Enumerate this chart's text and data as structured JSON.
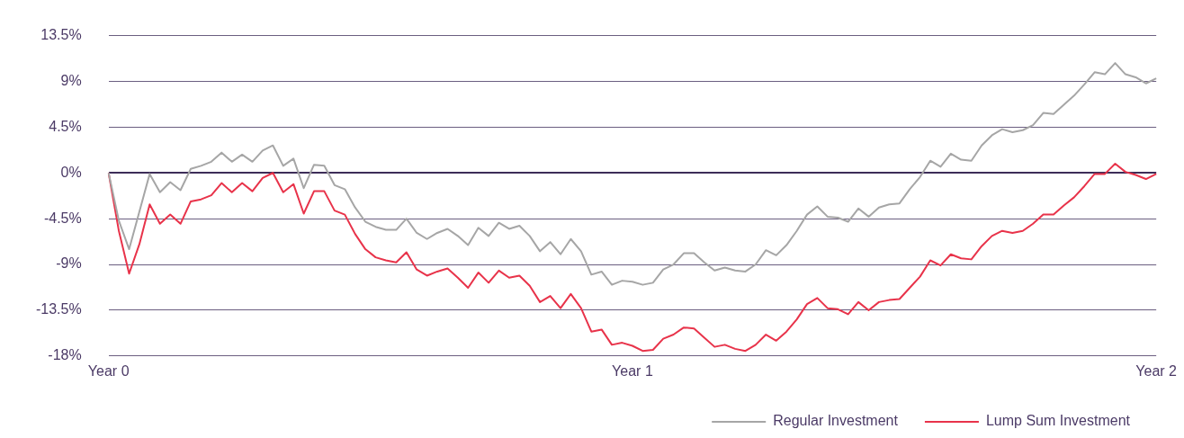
{
  "chart_data": {
    "type": "line",
    "categories": [
      "Year 0",
      null,
      null,
      null,
      null,
      null,
      null,
      null,
      null,
      null,
      null,
      null,
      null,
      null,
      null,
      null,
      null,
      null,
      null,
      null,
      null,
      null,
      null,
      null,
      null,
      null,
      null,
      null,
      null,
      null,
      null,
      null,
      null,
      null,
      null,
      null,
      null,
      null,
      null,
      null,
      null,
      null,
      null,
      null,
      null,
      null,
      null,
      null,
      null,
      null,
      null,
      "Year 1",
      null,
      null,
      null,
      null,
      null,
      null,
      null,
      null,
      null,
      null,
      null,
      null,
      null,
      null,
      null,
      null,
      null,
      null,
      null,
      null,
      null,
      null,
      null,
      null,
      null,
      null,
      null,
      null,
      null,
      null,
      null,
      null,
      null,
      null,
      null,
      null,
      null,
      null,
      null,
      null,
      null,
      null,
      null,
      null,
      null,
      null,
      null,
      null,
      null,
      null,
      "Year 2"
    ],
    "series": [
      {
        "name": "Regular Investment",
        "color": "#a6a6a6",
        "values": [
          0,
          -4.7,
          -7.5,
          -3.8,
          -0.1,
          -1.9,
          -0.9,
          -1.7,
          0.4,
          0.7,
          1.1,
          2.0,
          1.1,
          1.8,
          1.1,
          2.2,
          2.7,
          0.7,
          1.4,
          -1.5,
          0.8,
          0.7,
          -1.2,
          -1.6,
          -3.4,
          -4.8,
          -5.3,
          -5.6,
          -5.6,
          -4.5,
          -5.9,
          -6.5,
          -5.9,
          -5.5,
          -6.2,
          -7.1,
          -5.4,
          -6.2,
          -4.9,
          -5.5,
          -5.2,
          -6.2,
          -7.7,
          -6.8,
          -8.0,
          -6.5,
          -7.7,
          -10.0,
          -9.7,
          -11.0,
          -10.6,
          -10.7,
          -11.0,
          -10.8,
          -9.5,
          -9.0,
          -7.9,
          -7.9,
          -8.8,
          -9.6,
          -9.3,
          -9.6,
          -9.7,
          -9.0,
          -7.6,
          -8.1,
          -7.1,
          -5.7,
          -4.1,
          -3.3,
          -4.3,
          -4.4,
          -4.8,
          -3.5,
          -4.3,
          -3.4,
          -3.1,
          -3.0,
          -1.6,
          -0.4,
          1.2,
          0.6,
          1.9,
          1.3,
          1.2,
          2.7,
          3.7,
          4.3,
          4.0,
          4.2,
          4.7,
          5.9,
          5.8,
          6.7,
          7.6,
          8.7,
          9.9,
          9.7,
          10.8,
          9.7,
          9.4,
          8.8,
          9.3
        ]
      },
      {
        "name": "Lump Sum Investment",
        "color": "#e8334a",
        "values": [
          0,
          -5.7,
          -9.9,
          -7.0,
          -3.1,
          -5.0,
          -4.1,
          -5.0,
          -2.8,
          -2.6,
          -2.2,
          -1.0,
          -1.9,
          -1.0,
          -1.8,
          -0.5,
          0,
          -1.9,
          -1.1,
          -4.0,
          -1.8,
          -1.8,
          -3.7,
          -4.1,
          -6.0,
          -7.5,
          -8.3,
          -8.6,
          -8.8,
          -7.8,
          -9.5,
          -10.1,
          -9.7,
          -9.4,
          -10.3,
          -11.3,
          -9.8,
          -10.8,
          -9.6,
          -10.3,
          -10.1,
          -11.1,
          -12.7,
          -12.1,
          -13.3,
          -11.9,
          -13.3,
          -15.6,
          -15.4,
          -16.9,
          -16.7,
          -17.0,
          -17.5,
          -17.4,
          -16.3,
          -15.9,
          -15.2,
          -15.3,
          -16.2,
          -17.1,
          -16.9,
          -17.3,
          -17.5,
          -16.9,
          -15.9,
          -16.5,
          -15.6,
          -14.4,
          -12.9,
          -12.3,
          -13.3,
          -13.4,
          -13.9,
          -12.7,
          -13.5,
          -12.7,
          -12.5,
          -12.4,
          -11.3,
          -10.2,
          -8.6,
          -9.1,
          -8.0,
          -8.4,
          -8.5,
          -7.2,
          -6.2,
          -5.7,
          -5.9,
          -5.7,
          -5.0,
          -4.1,
          -4.1,
          -3.2,
          -2.4,
          -1.3,
          -0.1,
          -0.1,
          0.9,
          0.1,
          -0.2,
          -0.6,
          -0.1
        ]
      }
    ],
    "ylim": [
      -18,
      13.5
    ],
    "yticks": [
      {
        "value": -18,
        "label": "-18%"
      },
      {
        "value": -13.5,
        "label": "-13.5%"
      },
      {
        "value": -9,
        "label": "-9%"
      },
      {
        "value": -4.5,
        "label": "-4.5%"
      },
      {
        "value": 0,
        "label": "0%"
      },
      {
        "value": 4.5,
        "label": "4.5%"
      },
      {
        "value": 9,
        "label": "9%"
      },
      {
        "value": 13.5,
        "label": "13.5%"
      }
    ],
    "grid": "y",
    "legend": "bottom right",
    "marker": "none",
    "line_style": "solid"
  }
}
